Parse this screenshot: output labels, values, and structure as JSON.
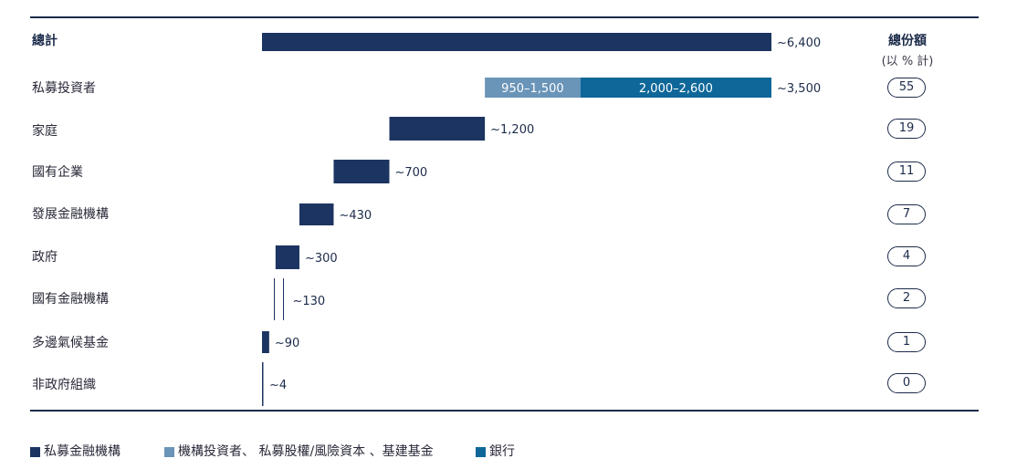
{
  "chart_data": {
    "type": "bar",
    "title": "",
    "total": {
      "label": "總計",
      "value_label": "~6,400",
      "value": 6400
    },
    "rows": [
      {
        "label": "私募投資者",
        "value_label": "~3,500",
        "share": "55",
        "segments": [
          {
            "label": "950–1,500",
            "series": 1,
            "start": 2800,
            "end": 4000
          },
          {
            "label": "2,000–2,600",
            "series": 2,
            "start": 4000,
            "end": 6400
          }
        ]
      },
      {
        "label": "家庭",
        "value_label": "~1,200",
        "share": "19",
        "value": 1200,
        "start": 1600,
        "end": 2800
      },
      {
        "label": "國有企業",
        "value_label": "~700",
        "share": "11",
        "value": 700,
        "start": 900,
        "end": 1600
      },
      {
        "label": "發展金融機構",
        "value_label": "~430",
        "share": "7",
        "value": 430,
        "start": 470,
        "end": 900
      },
      {
        "label": "政府",
        "value_label": "~300",
        "share": "4",
        "value": 300,
        "start": 170,
        "end": 470
      },
      {
        "label": "國有金融機構",
        "value_label": "~130",
        "share": "2",
        "value": 130,
        "start": 40,
        "end": 170
      },
      {
        "label": "多邊氣候基金",
        "value_label": "~90",
        "share": "1",
        "value": 90,
        "start": 0,
        "end": 90
      },
      {
        "label": "非政府組織",
        "value_label": "~4",
        "share": "0",
        "value": 4,
        "start": 0,
        "end": 4
      }
    ],
    "share_header": {
      "title": "總份額",
      "subtitle": "(以 % 計)"
    },
    "legend": [
      {
        "label": "私募金融機構",
        "color": "#1c3461"
      },
      {
        "label": "機構投資者、 私募股權/風險資本 、基建基金",
        "color": "#6a94b8"
      },
      {
        "label": "銀行",
        "color": "#0f6799"
      }
    ]
  },
  "colors": {
    "primary": "#1c3461",
    "institutional": "#6a94b8",
    "banks": "#0f6799",
    "rule": "#1c2b4a"
  }
}
